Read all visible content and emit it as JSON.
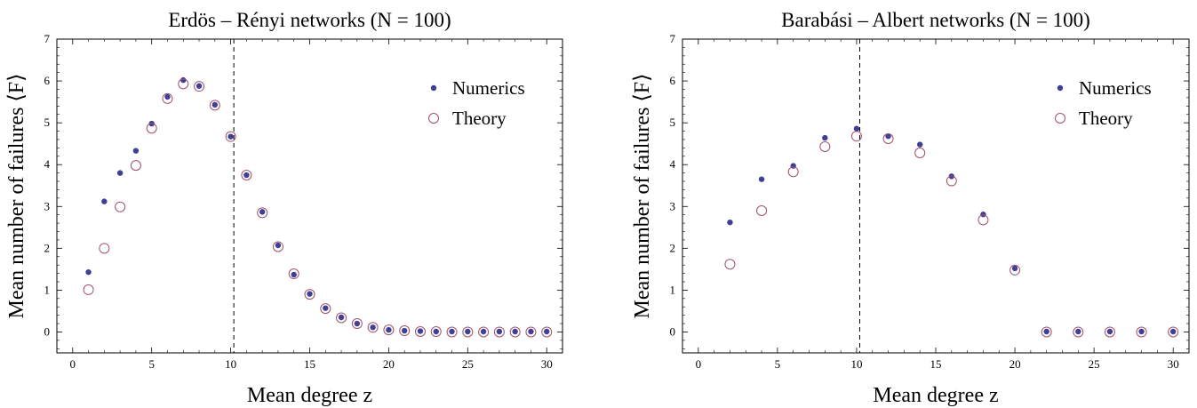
{
  "chart_data": [
    {
      "type": "scatter",
      "title": "Erdös – Rényi networks (N = 100)",
      "xlabel": "Mean degree z",
      "ylabel": "Mean number of failures ⟨F⟩",
      "xlim": [
        -1,
        31
      ],
      "ylim": [
        -0.5,
        7
      ],
      "xticks": [
        0,
        5,
        10,
        15,
        20,
        25,
        30
      ],
      "yticks": [
        0,
        1,
        2,
        3,
        4,
        5,
        6,
        7
      ],
      "vline": 10.2,
      "legend_position": "top-right",
      "series": [
        {
          "name": "Numerics",
          "marker": "filled",
          "color": "#3f3f96",
          "x": [
            1,
            2,
            3,
            4,
            5,
            6,
            7,
            8,
            9,
            10,
            11,
            12,
            13,
            14,
            15,
            16,
            17,
            18,
            19,
            20,
            21,
            22,
            23,
            24,
            25,
            26,
            27,
            28,
            29,
            30
          ],
          "y": [
            1.43,
            3.12,
            3.8,
            4.33,
            4.98,
            5.62,
            6.02,
            5.88,
            5.43,
            4.67,
            3.75,
            2.87,
            2.07,
            1.37,
            0.91,
            0.57,
            0.35,
            0.2,
            0.11,
            0.05,
            0.03,
            0.02,
            0.01,
            0.01,
            0.01,
            0.01,
            0.01,
            0.01,
            0.01,
            0.01
          ]
        },
        {
          "name": "Theory",
          "marker": "open",
          "color": "#a0506e",
          "x": [
            1,
            2,
            3,
            4,
            5,
            6,
            7,
            8,
            9,
            10,
            11,
            12,
            13,
            14,
            15,
            16,
            17,
            18,
            19,
            20,
            21,
            22,
            23,
            24,
            25,
            26,
            27,
            28,
            29,
            30
          ],
          "y": [
            1.01,
            2.0,
            2.99,
            3.98,
            4.87,
            5.58,
            5.93,
            5.87,
            5.42,
            4.67,
            3.75,
            2.85,
            2.04,
            1.39,
            0.9,
            0.56,
            0.34,
            0.2,
            0.11,
            0.05,
            0.03,
            0.01,
            0.01,
            0.0,
            0.0,
            0.0,
            0.0,
            0.0,
            0.0,
            0.0
          ]
        }
      ]
    },
    {
      "type": "scatter",
      "title": "Barabási – Albert networks (N = 100)",
      "xlabel": "Mean degree z",
      "ylabel": "Mean number of failures ⟨F⟩",
      "xlim": [
        -1,
        31
      ],
      "ylim": [
        -0.5,
        7
      ],
      "xticks": [
        0,
        5,
        10,
        15,
        20,
        25,
        30
      ],
      "yticks": [
        0,
        1,
        2,
        3,
        4,
        5,
        6,
        7
      ],
      "vline": 10.2,
      "legend_position": "top-right",
      "series": [
        {
          "name": "Numerics",
          "marker": "filled",
          "color": "#3f3f96",
          "x": [
            2,
            4,
            6,
            8,
            10,
            12,
            14,
            16,
            18,
            20,
            22,
            24,
            26,
            28,
            30
          ],
          "y": [
            2.62,
            3.65,
            3.97,
            4.64,
            4.86,
            4.68,
            4.48,
            3.72,
            2.81,
            1.52,
            0.01,
            0.01,
            0.01,
            0.01,
            0.01
          ]
        },
        {
          "name": "Theory",
          "marker": "open",
          "color": "#a0506e",
          "x": [
            2,
            4,
            6,
            8,
            10,
            12,
            14,
            16,
            18,
            20,
            22,
            24,
            26,
            28,
            30
          ],
          "y": [
            1.62,
            2.9,
            3.83,
            4.43,
            4.68,
            4.62,
            4.28,
            3.61,
            2.68,
            1.48,
            0.0,
            0.0,
            0.0,
            0.0,
            0.0
          ]
        }
      ]
    }
  ]
}
